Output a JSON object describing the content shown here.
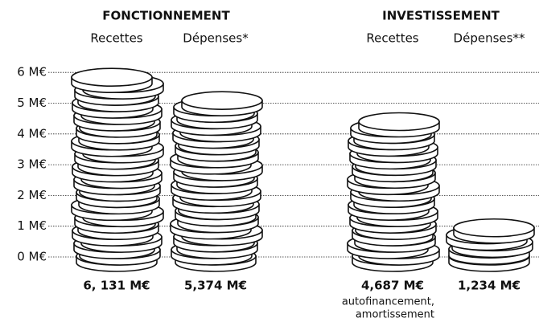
{
  "chart_data": {
    "type": "coin-stack",
    "groups": [
      {
        "label": "FONCTIONNEMENT",
        "members": [
          0,
          1
        ]
      },
      {
        "label": "INVESTISSEMENT",
        "members": [
          2,
          3
        ]
      }
    ],
    "categories": [
      "Recettes",
      "Dépenses*",
      "Recettes",
      "Dépenses**"
    ],
    "values": [
      6.131,
      5.374,
      4.687,
      1.234
    ],
    "value_labels": [
      "6, 131 M€",
      "5,374 M€",
      "4,687 M€",
      "1,234 M€"
    ],
    "annotations": [
      {
        "category": 2,
        "lines": [
          "autofinancement,",
          "amortissement"
        ]
      }
    ],
    "ylim": [
      0,
      6.2
    ],
    "yticks": [
      {
        "value": 0,
        "label": "0 M€"
      },
      {
        "value": 1,
        "label": "1 M€"
      },
      {
        "value": 2,
        "label": "2 M€"
      },
      {
        "value": 3,
        "label": "3 M€"
      },
      {
        "value": 4,
        "label": "4 M€"
      },
      {
        "value": 5,
        "label": "5 M€"
      },
      {
        "value": 6,
        "label": "6 M€"
      }
    ],
    "grid": true
  }
}
